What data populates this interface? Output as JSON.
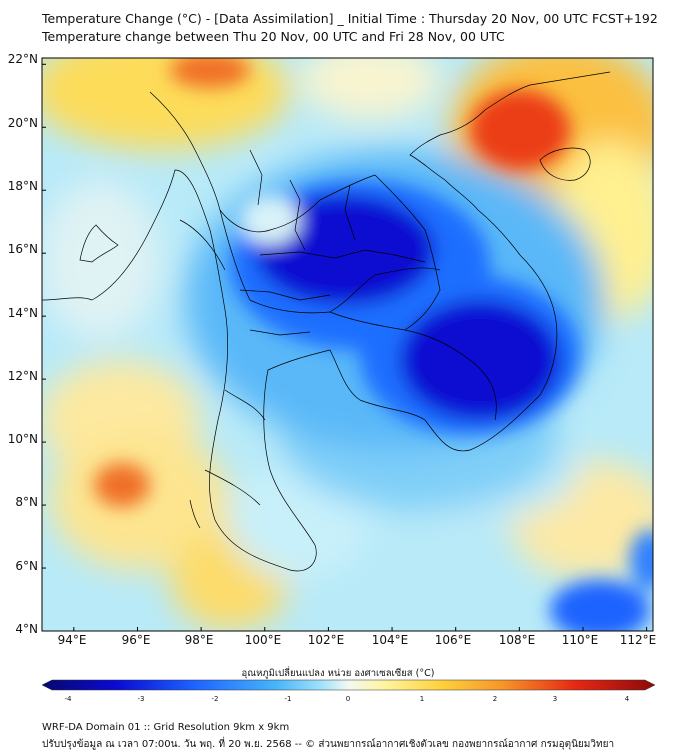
{
  "header": {
    "title_line1": "Temperature Change (°C) - [Data Assimilation] _ Initial Time : Thursday 20 Nov, 00 UTC FCST+192",
    "title_line2": "Temperature change between Thu 20 Nov, 00 UTC and Fri 28 Nov, 00 UTC"
  },
  "map": {
    "lat_labels": [
      "22°N",
      "20°N",
      "18°N",
      "16°N",
      "14°N",
      "12°N",
      "10°N",
      "8°N",
      "6°N",
      "4°N"
    ],
    "lon_labels": [
      "94°E",
      "96°E",
      "98°E",
      "100°E",
      "102°E",
      "104°E",
      "106°E",
      "108°E",
      "110°E",
      "112°E"
    ],
    "lat_values": [
      22,
      20,
      18,
      16,
      14,
      12,
      10,
      8,
      6,
      4
    ],
    "lon_values": [
      94,
      96,
      98,
      100,
      102,
      104,
      106,
      108,
      110,
      112
    ],
    "extent": {
      "lon": [
        93,
        112.2
      ],
      "lat": [
        4,
        22.2
      ]
    },
    "regions": [
      {
        "name": "cold-core-thailand-laos",
        "lon": 103.3,
        "lat": 16.0,
        "value": -3.0
      },
      {
        "name": "cold-core-cambodia",
        "lon": 106.5,
        "lat": 12.8,
        "value": -3.1
      },
      {
        "name": "cold-band-gulf",
        "lon": 105.0,
        "lat": 10.8,
        "value": -1.8
      },
      {
        "name": "warm-north-vietnam",
        "lon": 107.5,
        "lat": 20.0,
        "value": 2.8
      },
      {
        "name": "warm-north-myanmar",
        "lon": 98.5,
        "lat": 21.5,
        "value": 2.2
      },
      {
        "name": "warm-andaman",
        "lon": 95.8,
        "lat": 8.8,
        "value": 2.6
      },
      {
        "name": "warm-east-sea",
        "lon": 110.5,
        "lat": 19.0,
        "value": 1.2
      },
      {
        "name": "warm-south-sea",
        "lon": 110.5,
        "lat": 8.0,
        "value": 0.8
      },
      {
        "name": "warm-malay",
        "lon": 99.0,
        "lat": 5.5,
        "value": 1.4
      },
      {
        "name": "cool-southeast",
        "lon": 111.5,
        "lat": 4.6,
        "value": -1.9
      },
      {
        "name": "cool-andaman-north",
        "lon": 95.0,
        "lat": 15.5,
        "value": -0.8
      }
    ]
  },
  "colorbar": {
    "title": "อุณหภูมิเปลี่ยนแปลง หน่วย องศาเซลเซียส (°C)",
    "ticks": [
      "-4",
      "-3",
      "-2",
      "-1",
      "0",
      "1",
      "2",
      "3",
      "4"
    ],
    "min": -4,
    "max": 4
  },
  "colors": {
    "cold_max": "#0a0ad2",
    "cold": "#1e6eff",
    "cool": "#58c8f8",
    "neutral": "#f2f6ee",
    "warm": "#fff06e",
    "warm_mid": "#fab432",
    "hot": "#eb3c14"
  },
  "footer": {
    "line1": "WRF-DA Domain 01 :: Grid Resolution 9km x 9km",
    "line2": "ปรับปรุงข้อมูล ณ เวลา 07:00น. วัน พฤ. ที่ 20 พ.ย. 2568 -- © ส่วนพยากรณ์อากาศเชิงตัวเลข กองพยากรณ์อากาศ กรมอุตุนิยมวิทยา"
  }
}
